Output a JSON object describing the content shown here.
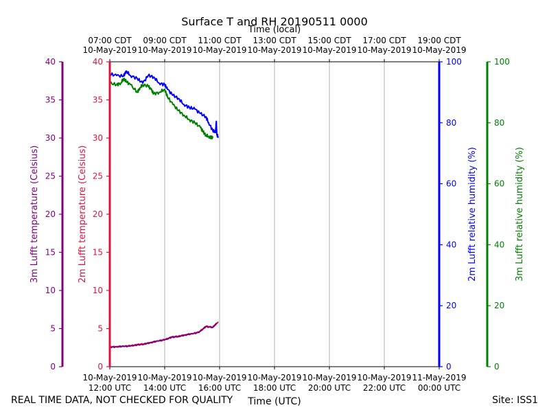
{
  "chart_data": {
    "type": "line",
    "title": "Surface T and RH 20190511 0000",
    "top_axis_label": "Time (local)",
    "xlabel": "Time (UTC)",
    "x_unit": "hours UTC since 12:00 UTC 10-May-2019",
    "xlim": [
      0,
      12
    ],
    "bottom_ticks": [
      {
        "x": 0,
        "line1": "10-May-2019",
        "line2": "12:00 UTC"
      },
      {
        "x": 2,
        "line1": "10-May-2019",
        "line2": "14:00 UTC"
      },
      {
        "x": 4,
        "line1": "10-May-2019",
        "line2": "16:00 UTC"
      },
      {
        "x": 6,
        "line1": "10-May-2019",
        "line2": "18:00 UTC"
      },
      {
        "x": 8,
        "line1": "10-May-2019",
        "line2": "20:00 UTC"
      },
      {
        "x": 10,
        "line1": "10-May-2019",
        "line2": "22:00 UTC"
      },
      {
        "x": 12,
        "line1": "11-May-2019",
        "line2": "00:00 UTC"
      }
    ],
    "top_ticks": [
      {
        "x": 0,
        "line1": "07:00 CDT",
        "line2": "10-May-2019"
      },
      {
        "x": 2,
        "line1": "09:00 CDT",
        "line2": "10-May-2019"
      },
      {
        "x": 4,
        "line1": "11:00 CDT",
        "line2": "10-May-2019"
      },
      {
        "x": 6,
        "line1": "13:00 CDT",
        "line2": "10-May-2019"
      },
      {
        "x": 8,
        "line1": "15:00 CDT",
        "line2": "10-May-2019"
      },
      {
        "x": 10,
        "line1": "17:00 CDT",
        "line2": "10-May-2019"
      },
      {
        "x": 12,
        "line1": "19:00 CDT",
        "line2": "10-May-2019"
      }
    ],
    "axes": {
      "t3m": {
        "label": "3m Lufft temperature (Celsius)",
        "color": "#800080",
        "ylim": [
          0,
          40
        ],
        "ticks": [
          0,
          5,
          10,
          15,
          20,
          25,
          30,
          35,
          40
        ]
      },
      "t2m": {
        "label": "2m Lufft temperature (Celsius)",
        "color": "#dc143c",
        "ylim": [
          0,
          40
        ],
        "ticks": [
          0,
          5,
          10,
          15,
          20,
          25,
          30,
          35,
          40
        ]
      },
      "rh2m": {
        "label": "2m Lufft relative humidity (%)",
        "color": "#0000ff",
        "ylim": [
          0,
          100
        ],
        "ticks": [
          0,
          20,
          40,
          60,
          80,
          100
        ]
      },
      "rh3m": {
        "label": "3m Lufft relative humidity (%)",
        "color": "#008000",
        "ylim": [
          0,
          100
        ],
        "ticks": [
          0,
          20,
          40,
          60,
          80,
          100
        ]
      }
    },
    "series": [
      {
        "name": "2m temperature",
        "axis": "t2m",
        "color": "#dc143c",
        "x": [
          0,
          0.25,
          0.5,
          0.75,
          1,
          1.25,
          1.5,
          1.75,
          2,
          2.25,
          2.5,
          2.75,
          3,
          3.25,
          3.5,
          3.75,
          3.95
        ],
        "y": [
          2.6,
          2.65,
          2.7,
          2.75,
          2.9,
          3.0,
          3.2,
          3.4,
          3.55,
          3.9,
          4.0,
          4.2,
          4.35,
          4.55,
          5.3,
          5.2,
          5.9
        ]
      },
      {
        "name": "3m temperature",
        "axis": "t3m",
        "color": "#800080",
        "x": [
          0,
          0.25,
          0.5,
          0.75,
          1,
          1.25,
          1.5,
          1.75,
          2,
          2.25,
          2.5,
          2.75,
          3,
          3.25,
          3.5,
          3.75,
          3.9
        ],
        "y": [
          2.55,
          2.6,
          2.65,
          2.7,
          2.85,
          2.95,
          3.15,
          3.35,
          3.5,
          3.85,
          3.95,
          4.15,
          4.3,
          4.5,
          5.25,
          5.15,
          5.7
        ]
      },
      {
        "name": "2m relative humidity",
        "axis": "rh2m",
        "color": "#0000ff",
        "x": [
          0,
          0.25,
          0.5,
          0.6,
          0.75,
          1,
          1.2,
          1.4,
          1.6,
          1.8,
          2,
          2.1,
          2.3,
          2.5,
          2.7,
          2.9,
          3.1,
          3.3,
          3.5,
          3.6,
          3.75,
          3.85,
          3.88,
          3.9,
          3.95
        ],
        "y": [
          96,
          95.5,
          95.3,
          97,
          95.5,
          94.5,
          93,
          95.5,
          95,
          93,
          92.5,
          91,
          89,
          88,
          86,
          85,
          84.5,
          83,
          82,
          80,
          77.5,
          76.8,
          80.5,
          76,
          75.5
        ]
      },
      {
        "name": "3m relative humidity",
        "axis": "rh3m",
        "color": "#008000",
        "x": [
          0,
          0.25,
          0.4,
          0.5,
          0.6,
          0.75,
          1,
          1.1,
          1.2,
          1.4,
          1.5,
          1.6,
          1.8,
          2,
          2.1,
          2.3,
          2.5,
          2.7,
          2.9,
          3.1,
          3.3,
          3.4,
          3.5,
          3.6,
          3.7,
          3.75
        ],
        "y": [
          93,
          92.5,
          93,
          94.5,
          93.5,
          92.5,
          90,
          91.5,
          92.5,
          92,
          91,
          89.5,
          90,
          91,
          88.5,
          86,
          84,
          82.5,
          81,
          80,
          78.5,
          77,
          76,
          75.5,
          75.2,
          75
        ]
      }
    ]
  },
  "footer": {
    "left": "REAL TIME DATA, NOT CHECKED FOR QUALITY",
    "right": "Site: ISS1"
  }
}
